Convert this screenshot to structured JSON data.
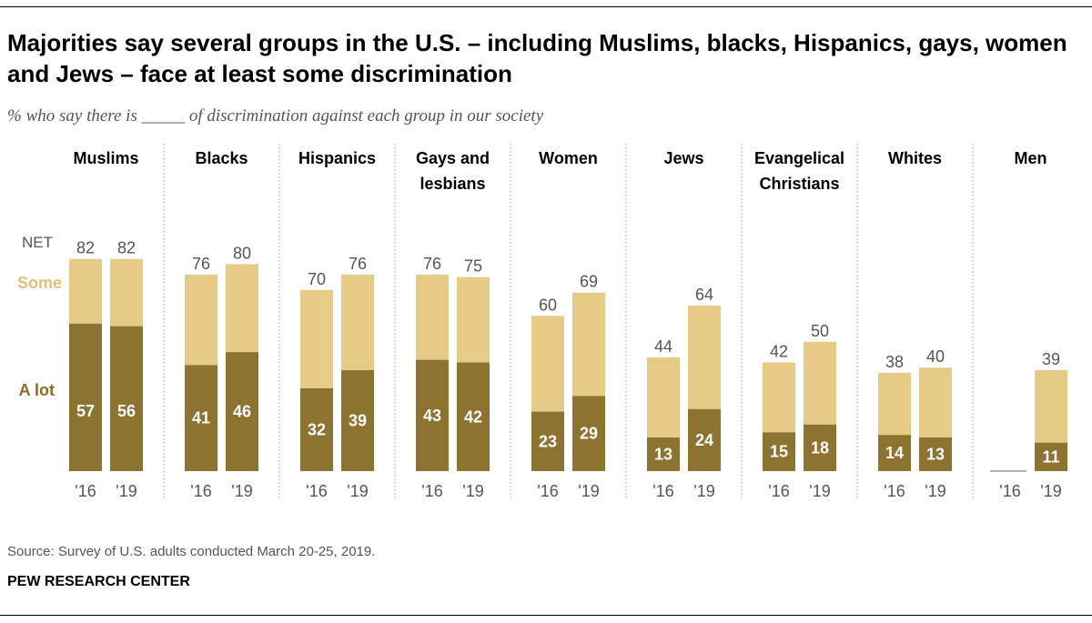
{
  "title": "Majorities say several groups in the U.S. – including Muslims, blacks, Hispanics, gays, women and Jews – face at least some discrimination",
  "subtitle": "% who say there is _____ of discrimination against each group in our society",
  "source": "Source: Survey of U.S. adults conducted March 20-25, 2019.",
  "org": "PEW RESEARCH CENTER",
  "legend": {
    "net": "NET",
    "some": "Some",
    "alot": "A lot"
  },
  "colors": {
    "alot": "#8c7330",
    "some": "#e5cb86",
    "some_label": "#e0c07a",
    "alot_label": "#8c6d1f",
    "inbar_text": "#ffffff",
    "net_text": "#555555",
    "divider": "#999999"
  },
  "chart_data": {
    "type": "bar",
    "stacked": true,
    "ylim": [
      0,
      100
    ],
    "years": [
      "'16",
      "'19"
    ],
    "series": [
      {
        "name": "A lot",
        "key": "alot"
      },
      {
        "name": "Some",
        "key": "some"
      }
    ],
    "groups": [
      {
        "name": [
          "Muslims"
        ],
        "net": [
          82,
          82
        ],
        "alot": [
          57,
          56
        ]
      },
      {
        "name": [
          "Blacks"
        ],
        "net": [
          76,
          80
        ],
        "alot": [
          41,
          46
        ]
      },
      {
        "name": [
          "Hispanics"
        ],
        "net": [
          70,
          76
        ],
        "alot": [
          32,
          39
        ]
      },
      {
        "name": [
          "Gays and",
          "lesbians"
        ],
        "net": [
          76,
          75
        ],
        "alot": [
          43,
          42
        ]
      },
      {
        "name": [
          "Women"
        ],
        "net": [
          60,
          69
        ],
        "alot": [
          23,
          29
        ]
      },
      {
        "name": [
          "Jews"
        ],
        "net": [
          44,
          64
        ],
        "alot": [
          13,
          24
        ]
      },
      {
        "name": [
          "Evangelical",
          "Christians"
        ],
        "net": [
          42,
          50
        ],
        "alot": [
          15,
          18
        ]
      },
      {
        "name": [
          "Whites"
        ],
        "net": [
          38,
          40
        ],
        "alot": [
          14,
          13
        ]
      },
      {
        "name": [
          "Men"
        ],
        "net": [
          null,
          39
        ],
        "alot": [
          null,
          11
        ]
      }
    ]
  }
}
